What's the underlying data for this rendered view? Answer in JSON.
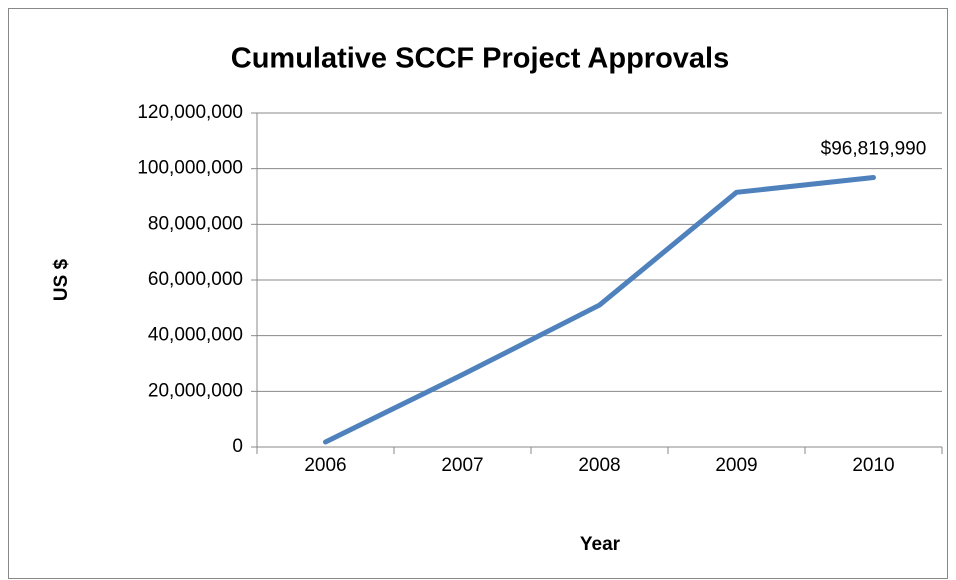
{
  "chart_data": {
    "type": "line",
    "title": "Cumulative SCCF Project Approvals",
    "x_label": "Year",
    "y_label": "US $",
    "categories": [
      "2006",
      "2007",
      "2008",
      "2009",
      "2010"
    ],
    "series": [
      {
        "name": "Cumulative SCCF Project Approvals",
        "color": "#4f81bd",
        "values": [
          1800000,
          26000000,
          51000000,
          91500000,
          96819990
        ],
        "value_labels": [
          null,
          null,
          null,
          null,
          "$96,819,990"
        ]
      }
    ],
    "ylim": [
      0,
      120000000
    ],
    "yticks": [
      {
        "value": 0,
        "label": "0"
      },
      {
        "value": 20000000,
        "label": "20,000,000"
      },
      {
        "value": 40000000,
        "label": "40,000,000"
      },
      {
        "value": 60000000,
        "label": "60,000,000"
      },
      {
        "value": 80000000,
        "label": "80,000,000"
      },
      {
        "value": 100000000,
        "label": "100,000,000"
      },
      {
        "value": 120000000,
        "label": "120,000,000"
      }
    ],
    "grid": true
  }
}
